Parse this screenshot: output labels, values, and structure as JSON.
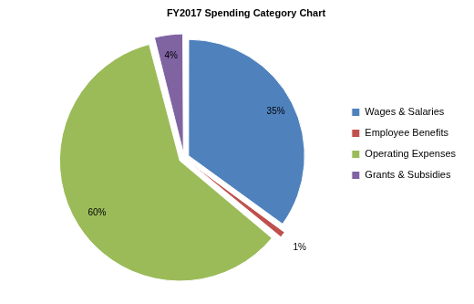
{
  "chart_data": {
    "type": "pie",
    "title": "FY2017 Spending Category Chart",
    "categories": [
      "Wages & Salaries",
      "Employee Benefits",
      "Operating Expenses",
      "Grants & Subsidies"
    ],
    "values": [
      35,
      1,
      60,
      4
    ],
    "value_labels": [
      "35%",
      "1%",
      "60%",
      "4%"
    ],
    "colors": [
      "#4F81BD",
      "#C0504D",
      "#9BBB59",
      "#8064A2"
    ],
    "legend": "right",
    "data_labels": true
  }
}
